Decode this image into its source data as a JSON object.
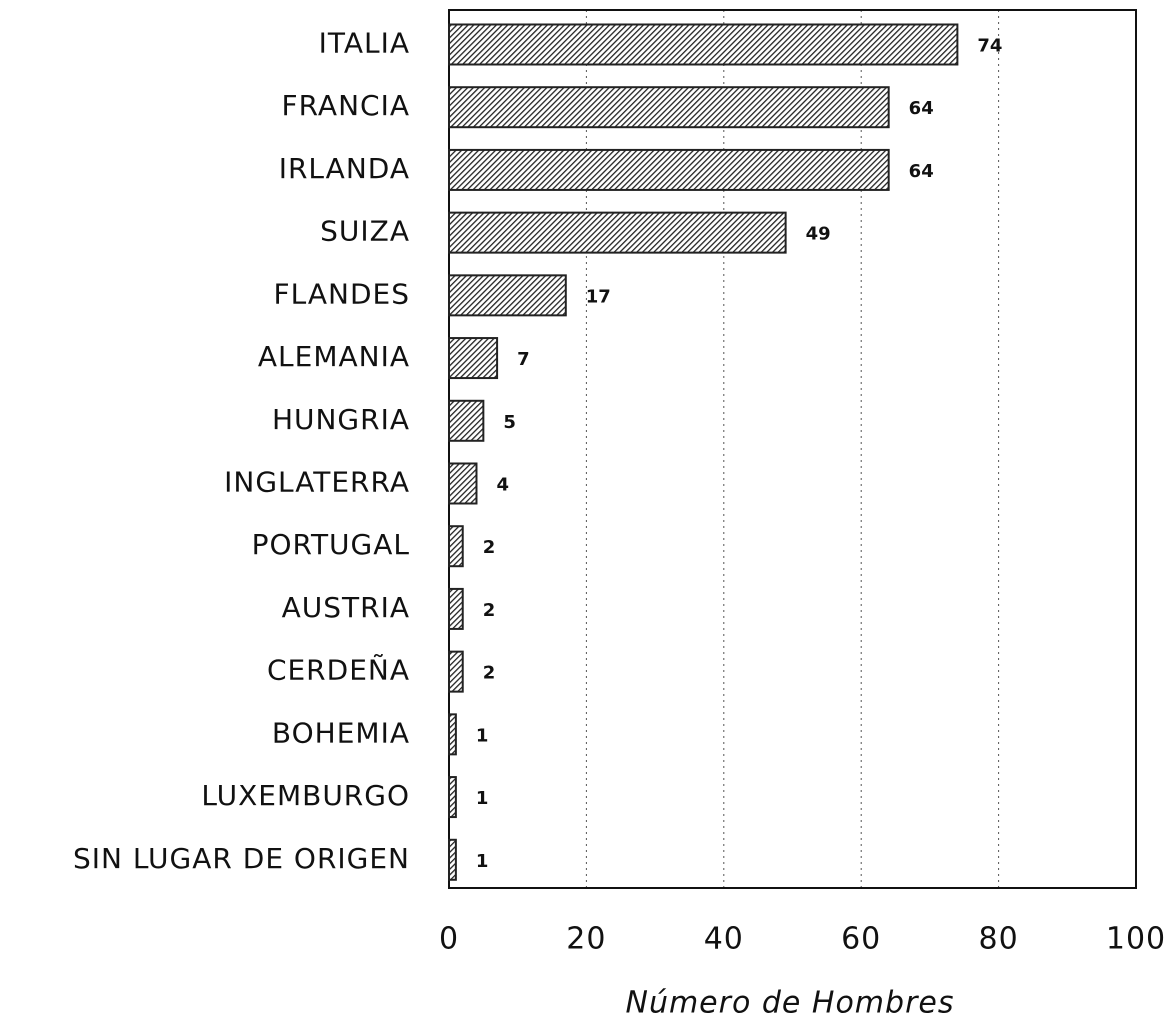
{
  "chart_data": {
    "type": "bar",
    "orientation": "horizontal",
    "categories": [
      "ITALIA",
      "FRANCIA",
      "IRLANDA",
      "SUIZA",
      "FLANDES",
      "ALEMANIA",
      "HUNGRIA",
      "INGLATERRA",
      "PORTUGAL",
      "AUSTRIA",
      "CERDEÑA",
      "BOHEMIA",
      "LUXEMBURGO",
      "SIN LUGAR DE ORIGEN"
    ],
    "values": [
      74,
      64,
      64,
      49,
      17,
      7,
      5,
      4,
      2,
      2,
      2,
      1,
      1,
      1
    ],
    "color": "#222222",
    "xlim": [
      0,
      100
    ],
    "xticks": [
      0,
      20,
      40,
      60,
      80,
      100
    ],
    "xlabel": "Número de Hombres",
    "grid": true
  }
}
